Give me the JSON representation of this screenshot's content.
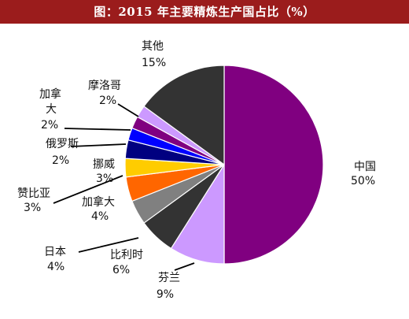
{
  "page_title": "图：2015 年主要精炼生产国占比（%）",
  "chart_data": {
    "type": "pie",
    "title": "图：2015 年主要精炼生产国占比（%）",
    "unit": "%",
    "slices": [
      {
        "name": "中国",
        "value": 50,
        "label": "50%",
        "color": "#800080"
      },
      {
        "name": "芬兰",
        "value": 9,
        "label": "9%",
        "color": "#cc99ff"
      },
      {
        "name": "比利时",
        "value": 6,
        "label": "6%",
        "color": "#333333"
      },
      {
        "name": "日本",
        "value": 4,
        "label": "4%",
        "color": "#808080"
      },
      {
        "name": "加拿大",
        "value": 4,
        "label": "4%",
        "color": "#ff6600"
      },
      {
        "name": "赞比亚",
        "value": 3,
        "label": "3%",
        "color": "#ffcc00"
      },
      {
        "name": "挪威",
        "value": 3,
        "label": "3%",
        "color": "#000080"
      },
      {
        "name": "俄罗斯",
        "value": 2,
        "label": "2%",
        "color": "#0000ff"
      },
      {
        "name": "加拿大",
        "value": 2,
        "label": "2%",
        "color": "#800080"
      },
      {
        "name": "摩洛哥",
        "value": 2,
        "label": "2%",
        "color": "#cc99ff"
      },
      {
        "name": "其他",
        "value": 15,
        "label": "15%",
        "color": "#333333"
      }
    ]
  }
}
